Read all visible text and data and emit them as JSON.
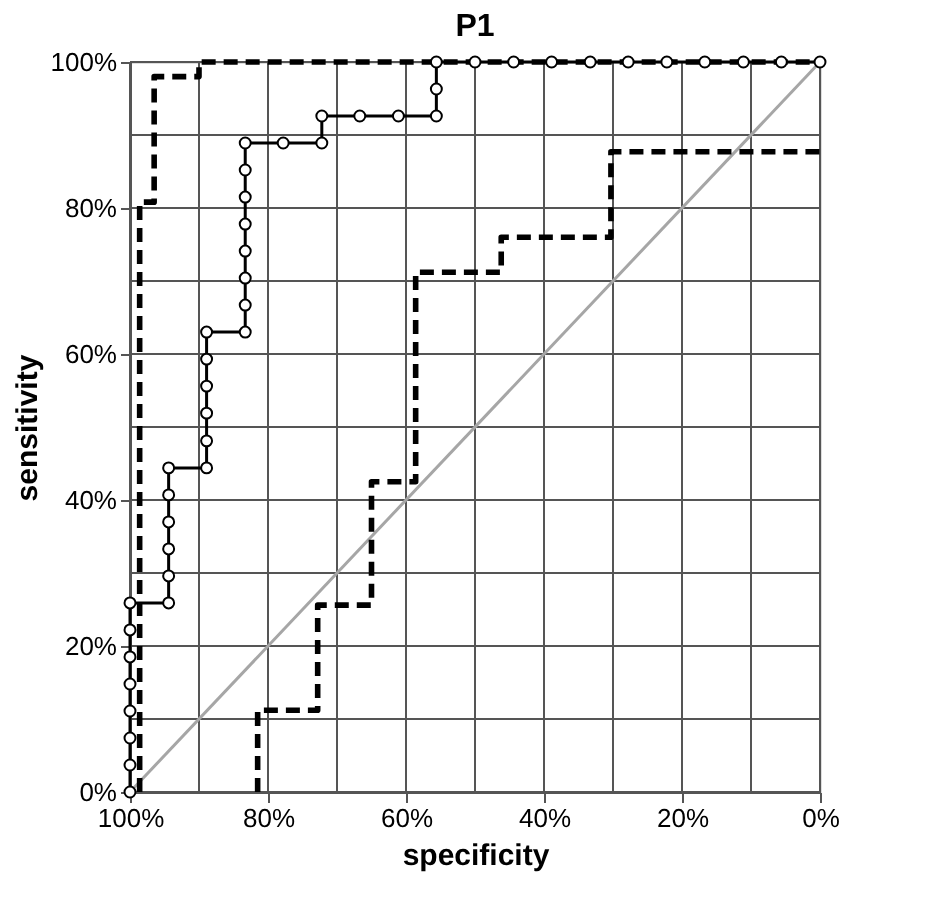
{
  "chart_data": {
    "type": "line",
    "title": "P1",
    "xlabel": "specificity",
    "ylabel": "sensitivity",
    "xlim": [
      100,
      0
    ],
    "ylim": [
      0,
      100
    ],
    "xticks": [
      {
        "value": 100,
        "label": "100%"
      },
      {
        "value": 90,
        "label": null
      },
      {
        "value": 80,
        "label": "80%"
      },
      {
        "value": 70,
        "label": null
      },
      {
        "value": 60,
        "label": "60%"
      },
      {
        "value": 50,
        "label": null
      },
      {
        "value": 40,
        "label": "40%"
      },
      {
        "value": 30,
        "label": null
      },
      {
        "value": 20,
        "label": "20%"
      },
      {
        "value": 10,
        "label": null
      },
      {
        "value": 0,
        "label": "0%"
      }
    ],
    "yticks": [
      {
        "value": 0,
        "label": "0%"
      },
      {
        "value": 10,
        "label": null
      },
      {
        "value": 20,
        "label": "20%"
      },
      {
        "value": 30,
        "label": null
      },
      {
        "value": 40,
        "label": "40%"
      },
      {
        "value": 50,
        "label": null
      },
      {
        "value": 60,
        "label": "60%"
      },
      {
        "value": 70,
        "label": null
      },
      {
        "value": 80,
        "label": "80%"
      },
      {
        "value": 90,
        "label": null
      },
      {
        "value": 100,
        "label": "100%"
      }
    ],
    "grid": true,
    "series": [
      {
        "color": "#a6a6a6",
        "line_style": "solid",
        "marker": "none",
        "x": [
          100,
          0
        ],
        "values": [
          0,
          100
        ]
      },
      {
        "color": "#000000",
        "line_style": "dashed",
        "marker": "none",
        "x": [
          81.5,
          81.5,
          72.8,
          72.8,
          65,
          65,
          58.6,
          58.6,
          46.2,
          46.2,
          30.3,
          30.3,
          0
        ],
        "values": [
          0,
          11.2,
          11.2,
          25.6,
          25.6,
          42.5,
          42.5,
          71.2,
          71.2,
          76,
          76,
          87.7,
          87.7
        ]
      },
      {
        "color": "#000000",
        "line_style": "dashed",
        "marker": "none",
        "x": [
          98.6,
          98.6,
          96.5,
          96.5,
          90,
          90,
          0
        ],
        "values": [
          0,
          80.8,
          80.8,
          98,
          98,
          100,
          100
        ]
      },
      {
        "color": "#000000",
        "line_style": "solid",
        "marker": "circle",
        "x": [
          100,
          100,
          100,
          100,
          100,
          100,
          100,
          100,
          94.4,
          94.4,
          94.4,
          94.4,
          94.4,
          94.4,
          88.9,
          88.9,
          88.9,
          88.9,
          88.9,
          88.9,
          83.3,
          83.3,
          83.3,
          83.3,
          83.3,
          83.3,
          83.3,
          83.3,
          77.8,
          72.2,
          72.2,
          66.7,
          61.1,
          55.6,
          55.6,
          55.6,
          50,
          44.4,
          38.9,
          33.3,
          27.8,
          22.2,
          16.7,
          11.1,
          5.6,
          0
        ],
        "values": [
          0,
          3.7,
          7.4,
          11.1,
          14.8,
          18.5,
          22.2,
          25.9,
          25.9,
          29.6,
          33.3,
          37.0,
          40.7,
          44.4,
          44.4,
          48.1,
          51.9,
          55.6,
          59.3,
          63.0,
          63.0,
          66.7,
          70.4,
          74.1,
          77.8,
          81.5,
          85.2,
          88.9,
          88.9,
          88.9,
          92.6,
          92.6,
          92.6,
          92.6,
          96.3,
          100,
          100,
          100,
          100,
          100,
          100,
          100,
          100,
          100,
          100,
          100
        ]
      }
    ]
  }
}
